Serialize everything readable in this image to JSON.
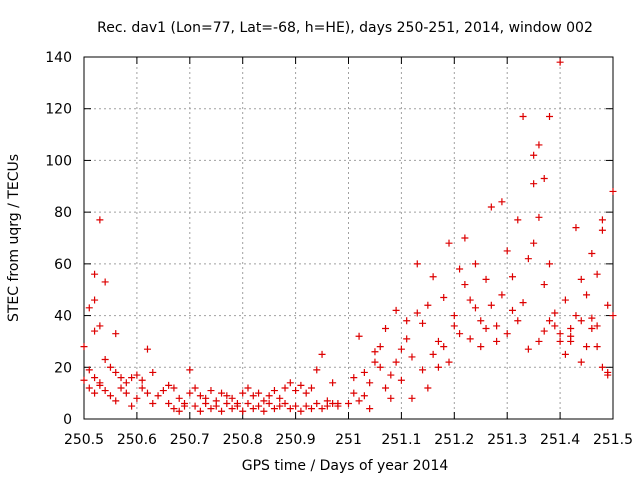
{
  "chart_data": {
    "type": "scatter",
    "title": "Rec. dav1 (Lon=77, Lat=-68, h=HE), days 250-251, 2014, window 002",
    "xlabel": "GPS time / Days of year 2014",
    "ylabel": "STEC from uqrg / TECUs",
    "xlim": [
      250.5,
      251.5
    ],
    "ylim": [
      0,
      140
    ],
    "xticks": [
      250.5,
      250.6,
      250.7,
      250.8,
      250.9,
      251.0,
      251.1,
      251.2,
      251.3,
      251.4,
      251.5
    ],
    "xtick_labels": [
      "250.5",
      "250.6",
      "250.7",
      "250.8",
      "250.9",
      "251",
      "251.1",
      "251.2",
      "251.3",
      "251.4",
      "251.5"
    ],
    "yticks": [
      0,
      20,
      40,
      60,
      80,
      100,
      120,
      140
    ],
    "ytick_labels": [
      "0",
      "20",
      "40",
      "60",
      "80",
      "100",
      "120",
      "140"
    ],
    "grid": true,
    "marker": "plus",
    "color": "#dd0000",
    "series": [
      {
        "name": "STEC",
        "points": [
          [
            250.5,
            28
          ],
          [
            250.51,
            19
          ],
          [
            250.52,
            34
          ],
          [
            250.52,
            16
          ],
          [
            250.53,
            14
          ],
          [
            250.54,
            23
          ],
          [
            250.55,
            20
          ],
          [
            250.56,
            33
          ],
          [
            250.52,
            56
          ],
          [
            250.52,
            46
          ],
          [
            250.53,
            77
          ],
          [
            250.54,
            53
          ],
          [
            250.53,
            36
          ],
          [
            250.51,
            43
          ],
          [
            250.5,
            15
          ],
          [
            250.51,
            12
          ],
          [
            250.52,
            10
          ],
          [
            250.53,
            13
          ],
          [
            250.54,
            11
          ],
          [
            250.55,
            9
          ],
          [
            250.56,
            7
          ],
          [
            250.57,
            12
          ],
          [
            250.58,
            14
          ],
          [
            250.59,
            16
          ],
          [
            250.56,
            18
          ],
          [
            250.57,
            16
          ],
          [
            250.58,
            10
          ],
          [
            250.59,
            5
          ],
          [
            250.6,
            8
          ],
          [
            250.61,
            12
          ],
          [
            250.62,
            27
          ],
          [
            250.63,
            18
          ],
          [
            250.6,
            17
          ],
          [
            250.61,
            15
          ],
          [
            250.62,
            10
          ],
          [
            250.63,
            6
          ],
          [
            250.64,
            9
          ],
          [
            250.65,
            11
          ],
          [
            250.66,
            13
          ],
          [
            250.67,
            12
          ],
          [
            250.68,
            8
          ],
          [
            250.69,
            5
          ],
          [
            250.7,
            10
          ],
          [
            250.7,
            19
          ],
          [
            250.71,
            12
          ],
          [
            250.72,
            9
          ],
          [
            250.73,
            8
          ],
          [
            250.74,
            11
          ],
          [
            250.75,
            7
          ],
          [
            250.76,
            10
          ],
          [
            250.77,
            9
          ],
          [
            250.78,
            8
          ],
          [
            250.79,
            6
          ],
          [
            250.8,
            10
          ],
          [
            250.81,
            12
          ],
          [
            250.82,
            9
          ],
          [
            250.83,
            10
          ],
          [
            250.84,
            7
          ],
          [
            250.85,
            9
          ],
          [
            250.86,
            11
          ],
          [
            250.87,
            8
          ],
          [
            250.88,
            12
          ],
          [
            250.89,
            14
          ],
          [
            250.9,
            11
          ],
          [
            250.91,
            13
          ],
          [
            250.92,
            10
          ],
          [
            250.93,
            12
          ],
          [
            250.94,
            19
          ],
          [
            250.95,
            25
          ],
          [
            250.96,
            7
          ],
          [
            250.97,
            14
          ],
          [
            250.98,
            6
          ],
          [
            250.66,
            6
          ],
          [
            250.67,
            4
          ],
          [
            250.68,
            3
          ],
          [
            250.69,
            6
          ],
          [
            250.71,
            5
          ],
          [
            250.72,
            3
          ],
          [
            250.73,
            6
          ],
          [
            250.74,
            4
          ],
          [
            250.75,
            5
          ],
          [
            250.76,
            3
          ],
          [
            250.77,
            6
          ],
          [
            250.78,
            4
          ],
          [
            250.79,
            5
          ],
          [
            250.8,
            3
          ],
          [
            250.81,
            6
          ],
          [
            250.82,
            4
          ],
          [
            250.83,
            5
          ],
          [
            250.84,
            3
          ],
          [
            250.85,
            6
          ],
          [
            250.86,
            4
          ],
          [
            250.87,
            5
          ],
          [
            250.88,
            6
          ],
          [
            250.89,
            4
          ],
          [
            250.9,
            5
          ],
          [
            250.91,
            3
          ],
          [
            250.92,
            5
          ],
          [
            250.93,
            4
          ],
          [
            250.94,
            6
          ],
          [
            250.95,
            4
          ],
          [
            250.96,
            5
          ],
          [
            250.97,
            6
          ],
          [
            250.98,
            5
          ],
          [
            251.0,
            6
          ],
          [
            251.01,
            16
          ],
          [
            251.02,
            32
          ],
          [
            251.03,
            9
          ],
          [
            251.04,
            14
          ],
          [
            251.05,
            22
          ],
          [
            251.06,
            28
          ],
          [
            251.07,
            12
          ],
          [
            251.01,
            10
          ],
          [
            251.02,
            7
          ],
          [
            251.03,
            18
          ],
          [
            251.04,
            4
          ],
          [
            251.05,
            26
          ],
          [
            251.06,
            20
          ],
          [
            251.07,
            35
          ],
          [
            251.08,
            17
          ],
          [
            251.08,
            8
          ],
          [
            251.09,
            22
          ],
          [
            251.1,
            15
          ],
          [
            251.11,
            31
          ],
          [
            251.12,
            24
          ],
          [
            251.13,
            41
          ],
          [
            251.14,
            19
          ],
          [
            251.15,
            12
          ],
          [
            251.09,
            42
          ],
          [
            251.1,
            27
          ],
          [
            251.11,
            38
          ],
          [
            251.12,
            8
          ],
          [
            251.13,
            60
          ],
          [
            251.14,
            37
          ],
          [
            251.15,
            44
          ],
          [
            251.16,
            25
          ],
          [
            251.16,
            55
          ],
          [
            251.17,
            30
          ],
          [
            251.18,
            47
          ],
          [
            251.19,
            68
          ],
          [
            251.2,
            40
          ],
          [
            251.21,
            33
          ],
          [
            251.22,
            52
          ],
          [
            251.23,
            46
          ],
          [
            251.17,
            20
          ],
          [
            251.18,
            28
          ],
          [
            251.19,
            22
          ],
          [
            251.2,
            36
          ],
          [
            251.21,
            58
          ],
          [
            251.22,
            70
          ],
          [
            251.23,
            31
          ],
          [
            251.24,
            43
          ],
          [
            251.24,
            60
          ],
          [
            251.25,
            38
          ],
          [
            251.26,
            54
          ],
          [
            251.27,
            82
          ],
          [
            251.28,
            36
          ],
          [
            251.29,
            48
          ],
          [
            251.3,
            65
          ],
          [
            251.31,
            42
          ],
          [
            251.25,
            28
          ],
          [
            251.26,
            35
          ],
          [
            251.27,
            44
          ],
          [
            251.28,
            30
          ],
          [
            251.29,
            84
          ],
          [
            251.3,
            33
          ],
          [
            251.31,
            55
          ],
          [
            251.32,
            77
          ],
          [
            251.32,
            38
          ],
          [
            251.33,
            117
          ],
          [
            251.34,
            62
          ],
          [
            251.35,
            91
          ],
          [
            251.35,
            102
          ],
          [
            251.36,
            106
          ],
          [
            251.37,
            93
          ],
          [
            251.38,
            117
          ],
          [
            251.33,
            45
          ],
          [
            251.34,
            27
          ],
          [
            251.35,
            68
          ],
          [
            251.36,
            78
          ],
          [
            251.37,
            52
          ],
          [
            251.38,
            60
          ],
          [
            251.39,
            36
          ],
          [
            251.4,
            138
          ],
          [
            251.39,
            41
          ],
          [
            251.4,
            30
          ],
          [
            251.41,
            46
          ],
          [
            251.42,
            35
          ],
          [
            251.43,
            74
          ],
          [
            251.44,
            54
          ],
          [
            251.45,
            28
          ],
          [
            251.46,
            39
          ],
          [
            251.41,
            25
          ],
          [
            251.42,
            32
          ],
          [
            251.43,
            40
          ],
          [
            251.44,
            22
          ],
          [
            251.45,
            48
          ],
          [
            251.46,
            64
          ],
          [
            251.47,
            56
          ],
          [
            251.48,
            77
          ],
          [
            251.47,
            36
          ],
          [
            251.48,
            20
          ],
          [
            251.48,
            73
          ],
          [
            251.49,
            18
          ],
          [
            251.49,
            44
          ],
          [
            251.5,
            88
          ],
          [
            251.5,
            40
          ],
          [
            251.49,
            17
          ],
          [
            251.36,
            30
          ],
          [
            251.37,
            34
          ],
          [
            251.38,
            38
          ],
          [
            251.4,
            33
          ],
          [
            251.42,
            30
          ],
          [
            251.44,
            38
          ],
          [
            251.46,
            35
          ],
          [
            251.47,
            28
          ]
        ]
      }
    ]
  }
}
